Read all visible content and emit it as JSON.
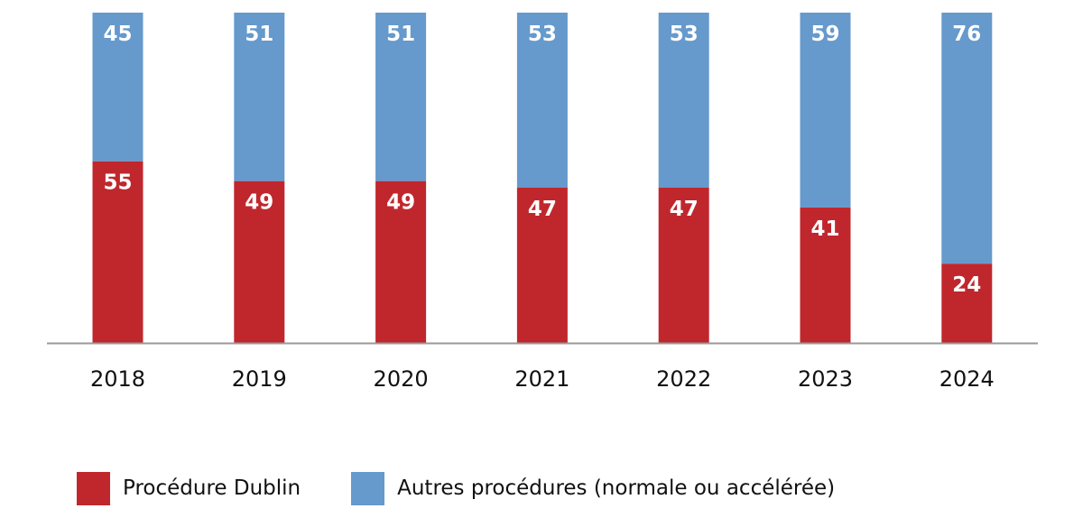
{
  "chart_data": {
    "type": "bar",
    "stacked": true,
    "categories": [
      "2018",
      "2019",
      "2020",
      "2021",
      "2022",
      "2023",
      "2024"
    ],
    "series": [
      {
        "name": "Procédure Dublin",
        "values": [
          55,
          49,
          49,
          47,
          47,
          41,
          24
        ],
        "color": "#c0272d"
      },
      {
        "name": "Autres procédures (normale ou accélérée)",
        "values": [
          45,
          51,
          51,
          53,
          53,
          59,
          76
        ],
        "color": "#6699cc"
      }
    ],
    "ylim": [
      0,
      100
    ],
    "grid": false,
    "data_labels": true,
    "legend_position": "bottom-left",
    "axis_color": "#999999"
  },
  "legend": {
    "items": [
      {
        "label": "Procédure Dublin",
        "color": "#c0272d"
      },
      {
        "label": "Autres procédures (normale ou accélérée)",
        "color": "#6699cc"
      }
    ]
  }
}
